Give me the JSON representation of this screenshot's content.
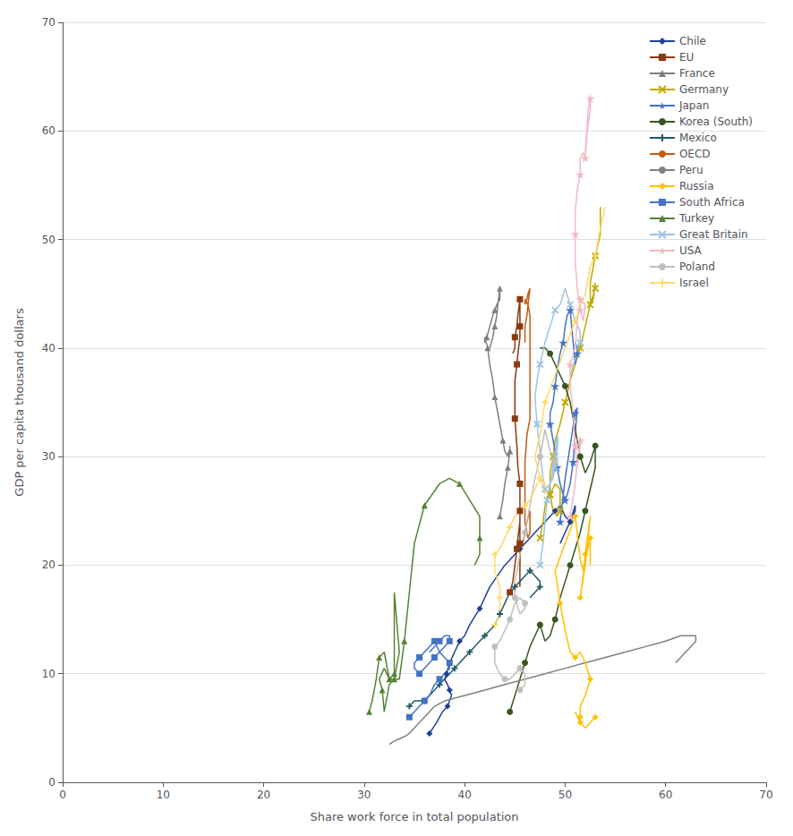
{
  "chart_data": {
    "type": "line",
    "xlabel": "Share work force in total population",
    "ylabel": "GDP per capita thousand dollars",
    "xlim": [
      0,
      70
    ],
    "ylim": [
      0,
      70
    ],
    "xticks": [
      0,
      10,
      20,
      30,
      40,
      50,
      60,
      70
    ],
    "yticks": [
      0,
      10,
      20,
      30,
      40,
      50,
      60,
      70
    ],
    "grid": "y",
    "legend": "upper right",
    "series": [
      {
        "name": "Chile",
        "color": "#1f3f99",
        "marker": "diamond",
        "x": [
          36.5,
          37.2,
          37.8,
          38.3,
          38.5,
          38.7,
          38.5,
          38.3,
          38.0,
          38.2,
          38.5,
          39.0,
          39.5,
          40.0,
          40.5,
          41.5,
          42.5,
          44.0,
          45.5,
          47.0,
          48.0,
          49.0,
          49.5,
          50.0,
          50.5,
          51.0,
          51.0,
          50.5,
          50.0,
          49.5
        ],
        "values": [
          4.5,
          5.5,
          6.5,
          7.0,
          7.5,
          8.0,
          8.5,
          9.0,
          9.5,
          10.0,
          11.0,
          12.0,
          13.0,
          13.5,
          14.5,
          16.0,
          18.0,
          20.0,
          21.5,
          23.0,
          24.0,
          25.0,
          25.5,
          24.5,
          24.0,
          25.0,
          25.5,
          24.0,
          23.0,
          22.0
        ]
      },
      {
        "name": "EU",
        "color": "#8b3a0f",
        "marker": "square",
        "x": [
          44.5,
          44.8,
          45.0,
          45.2,
          45.3,
          45.5,
          45.5,
          45.5,
          45.5,
          45.5,
          45.5,
          45.5,
          45.5,
          45.3,
          45.2,
          45.0,
          45.0,
          45.0,
          45.2,
          45.3,
          45.5,
          45.5,
          45.5,
          45.5,
          45.5,
          45.3,
          45.2,
          45.0,
          45.0,
          44.8
        ],
        "values": [
          17.5,
          18.5,
          20.0,
          21.5,
          22.5,
          24.0,
          25.0,
          18.0,
          19.0,
          22.0,
          23.5,
          26.0,
          27.5,
          29.0,
          31.0,
          33.5,
          35.0,
          37.0,
          38.5,
          39.5,
          41.0,
          42.0,
          43.0,
          44.0,
          44.5,
          43.0,
          42.0,
          41.0,
          40.0,
          39.5
        ]
      },
      {
        "name": "France",
        "color": "#7f7f7f",
        "marker": "triangle",
        "x": [
          43.5,
          43.8,
          44.0,
          44.3,
          44.5,
          44.5,
          44.5,
          44.3,
          44.0,
          43.8,
          43.5,
          43.2,
          43.0,
          42.8,
          42.5,
          42.3,
          42.0,
          42.0,
          42.2,
          42.5,
          42.8,
          43.0,
          43.2,
          43.5,
          43.5,
          43.3,
          43.2,
          43.0,
          42.8,
          42.5
        ],
        "values": [
          24.5,
          26.0,
          27.5,
          29.0,
          30.5,
          31.0,
          30.5,
          30.0,
          30.5,
          31.5,
          33.0,
          34.5,
          35.5,
          37.0,
          38.5,
          40.0,
          41.0,
          40.5,
          41.0,
          42.0,
          43.0,
          43.5,
          44.0,
          44.5,
          45.5,
          44.0,
          43.0,
          42.0,
          41.0,
          40.0
        ]
      },
      {
        "name": "Germany",
        "color": "#bfaa00",
        "marker": "x",
        "x": [
          47.5,
          47.8,
          48.0,
          48.5,
          49.0,
          49.5,
          49.5,
          49.2,
          48.8,
          48.5,
          48.5,
          48.5,
          48.8,
          49.0,
          49.5,
          50.0,
          50.5,
          51.0,
          51.5,
          52.0,
          52.5,
          53.0,
          53.0,
          52.8,
          52.5,
          52.5,
          52.8,
          53.0,
          53.5,
          53.5
        ],
        "values": [
          22.5,
          24.0,
          25.5,
          26.5,
          27.5,
          27.0,
          25.0,
          24.5,
          25.0,
          26.5,
          27.5,
          28.5,
          30.0,
          31.5,
          33.0,
          35.0,
          37.0,
          38.5,
          40.0,
          42.0,
          44.0,
          45.5,
          46.0,
          44.5,
          44.0,
          46.0,
          47.5,
          48.5,
          50.5,
          53.0
        ]
      },
      {
        "name": "Japan",
        "color": "#4472c4",
        "marker": "star",
        "x": [
          49.5,
          50.0,
          50.5,
          51.0,
          51.2,
          51.0,
          50.8,
          50.5,
          50.2,
          50.0,
          49.8,
          49.5,
          49.2,
          49.0,
          48.8,
          48.5,
          48.5,
          48.8,
          49.0,
          49.2,
          49.5,
          49.8,
          50.0,
          50.2,
          50.5,
          50.8,
          51.0,
          51.2,
          51.2,
          51.0
        ],
        "values": [
          24.0,
          28.0,
          31.0,
          34.0,
          34.5,
          32.0,
          29.5,
          27.5,
          26.5,
          26.0,
          26.5,
          27.5,
          29.0,
          30.5,
          31.5,
          33.0,
          34.0,
          35.0,
          36.5,
          38.0,
          39.5,
          40.5,
          42.0,
          43.0,
          43.5,
          40.5,
          38.5,
          39.5,
          40.0,
          40.5
        ]
      },
      {
        "name": "Korea (South)",
        "color": "#375623",
        "marker": "circle",
        "x": [
          44.5,
          45.0,
          45.5,
          46.0,
          46.5,
          47.0,
          47.5,
          48.0,
          48.5,
          49.0,
          49.5,
          50.0,
          50.5,
          51.0,
          51.5,
          52.0,
          52.5,
          53.0,
          53.0,
          52.5,
          52.0,
          51.5,
          51.0,
          50.5,
          50.0,
          49.5,
          49.0,
          48.5,
          48.0,
          47.5
        ],
        "values": [
          6.5,
          8.0,
          9.5,
          11.0,
          12.5,
          13.5,
          14.5,
          13.0,
          13.5,
          15.0,
          17.0,
          18.5,
          20.0,
          21.5,
          23.0,
          25.0,
          27.0,
          29.0,
          31.0,
          29.5,
          28.5,
          30.0,
          32.5,
          35.0,
          36.5,
          37.5,
          38.5,
          39.5,
          40.0,
          40.0
        ]
      },
      {
        "name": "Mexico",
        "color": "#215868",
        "marker": "plus",
        "x": [
          34.5,
          35.0,
          35.5,
          36.0,
          36.5,
          37.0,
          37.5,
          38.0,
          38.5,
          39.0,
          39.5,
          40.0,
          40.5,
          41.0,
          41.5,
          42.0,
          42.5,
          43.0,
          43.5,
          44.0,
          44.5,
          45.0,
          45.5,
          46.0,
          46.5,
          47.0,
          47.5,
          47.5,
          47.0,
          46.5
        ],
        "values": [
          7.0,
          7.5,
          7.5,
          7.5,
          8.0,
          8.5,
          9.0,
          9.5,
          10.0,
          10.5,
          11.0,
          11.5,
          12.0,
          12.5,
          13.0,
          13.5,
          14.0,
          14.5,
          15.5,
          16.5,
          17.5,
          18.0,
          18.5,
          19.0,
          19.5,
          19.0,
          18.5,
          18.0,
          17.5,
          17.0
        ]
      },
      {
        "name": "OECD",
        "color": "#c55a11",
        "marker": "none",
        "x": [
          45.5,
          45.5,
          45.8,
          46.0,
          46.2,
          46.5,
          46.5,
          46.3,
          46.0,
          46.0,
          46.0,
          46.2,
          46.5,
          46.5,
          46.5,
          46.5,
          46.5,
          46.5,
          46.5,
          46.3,
          46.0,
          46.0,
          46.2,
          46.3,
          46.5,
          46.3,
          46.2,
          46.0,
          46.0,
          46.0
        ],
        "values": [
          20.0,
          21.0,
          22.0,
          23.0,
          24.0,
          25.0,
          23.0,
          22.5,
          24.0,
          27.0,
          29.5,
          32.0,
          33.5,
          35.0,
          37.0,
          38.5,
          40.0,
          41.5,
          43.0,
          44.0,
          44.5,
          44.0,
          44.5,
          45.0,
          45.5,
          44.0,
          43.0,
          42.0,
          41.0,
          40.5
        ]
      },
      {
        "name": "Peru",
        "color": "#808080",
        "marker": "none",
        "x": [
          32.5,
          33.0,
          33.5,
          34.0,
          34.5,
          35.0,
          35.5,
          36.0,
          36.5,
          37.0,
          38.0,
          40.0,
          42.0,
          44.0,
          46.0,
          48.0,
          50.0,
          52.0,
          54.0,
          56.0,
          58.0,
          60.0,
          61.5,
          62.5,
          63.0,
          63.0,
          62.5,
          62.0,
          61.5,
          61.0
        ],
        "values": [
          3.5,
          3.8,
          4.0,
          4.2,
          4.5,
          5.0,
          5.5,
          6.0,
          6.5,
          7.0,
          7.5,
          8.0,
          8.5,
          9.0,
          9.5,
          10.0,
          10.5,
          11.0,
          11.5,
          12.0,
          12.5,
          13.0,
          13.5,
          13.5,
          13.5,
          13.0,
          12.5,
          12.0,
          11.5,
          11.0
        ]
      },
      {
        "name": "Russia",
        "color": "#ffc000",
        "marker": "diamond",
        "x": [
          53.0,
          52.5,
          52.0,
          51.5,
          51.0,
          51.5,
          51.5,
          51.5,
          52.0,
          52.5,
          52.0,
          51.5,
          51.0,
          50.5,
          50.0,
          49.5,
          49.0,
          50.0,
          51.0,
          51.5,
          51.8,
          52.0,
          52.5,
          52.0,
          51.5,
          52.0,
          52.5,
          52.5,
          52.5,
          52.5
        ],
        "values": [
          6.0,
          5.5,
          5.0,
          5.5,
          6.5,
          5.5,
          6.0,
          7.0,
          8.0,
          9.5,
          11.0,
          12.0,
          11.5,
          12.0,
          14.0,
          16.5,
          19.5,
          22.0,
          24.5,
          20.5,
          19.5,
          21.0,
          24.5,
          20.0,
          17.0,
          20.5,
          22.5,
          22.5,
          21.5,
          20.0
        ]
      },
      {
        "name": "South Africa",
        "color": "#4472c4",
        "marker": "square",
        "x": [
          34.5,
          35.0,
          35.5,
          36.0,
          36.5,
          37.0,
          37.5,
          38.0,
          38.5,
          38.5,
          38.0,
          37.5,
          37.0,
          36.5,
          36.0,
          35.5,
          35.0,
          35.0,
          35.5,
          36.0,
          36.5,
          37.0,
          37.5,
          38.0,
          38.5,
          38.5,
          38.0,
          37.5,
          37.0,
          36.5
        ],
        "values": [
          6.0,
          6.5,
          7.0,
          7.5,
          8.0,
          9.0,
          9.5,
          10.0,
          10.5,
          11.0,
          11.5,
          12.0,
          13.0,
          12.5,
          12.0,
          11.5,
          11.0,
          10.5,
          10.0,
          10.5,
          11.0,
          11.5,
          12.0,
          12.5,
          13.0,
          13.5,
          13.5,
          13.0,
          12.5,
          12.0
        ]
      },
      {
        "name": "Turkey",
        "color": "#548235",
        "marker": "triangle",
        "x": [
          30.5,
          30.8,
          31.2,
          31.5,
          32.0,
          32.5,
          33.0,
          33.0,
          33.5,
          33.0,
          32.5,
          32.0,
          31.8,
          31.5,
          32.0,
          32.5,
          33.0,
          33.5,
          34.0,
          34.5,
          35.0,
          36.0,
          37.5,
          38.5,
          39.5,
          40.5,
          41.5,
          41.5,
          41.5,
          41.0
        ],
        "values": [
          6.5,
          7.5,
          9.5,
          11.5,
          12.0,
          9.5,
          10.0,
          17.5,
          12.0,
          9.5,
          9.0,
          6.5,
          8.5,
          9.5,
          10.5,
          9.5,
          9.5,
          9.5,
          13.0,
          17.5,
          22.0,
          25.5,
          27.5,
          28.0,
          27.5,
          26.0,
          24.5,
          22.5,
          21.0,
          20.0
        ]
      },
      {
        "name": "Great Britain",
        "color": "#9dc3e6",
        "marker": "x",
        "x": [
          47.5,
          47.8,
          48.0,
          48.2,
          48.5,
          48.8,
          49.0,
          49.2,
          49.3,
          49.0,
          48.8,
          48.5,
          48.0,
          47.8,
          47.5,
          47.2,
          47.0,
          47.2,
          47.5,
          48.0,
          48.5,
          49.0,
          49.5,
          50.0,
          50.5,
          51.0,
          51.5,
          51.5,
          51.0,
          50.5
        ],
        "values": [
          20.0,
          22.0,
          24.0,
          26.0,
          27.5,
          29.0,
          30.0,
          32.0,
          31.5,
          29.0,
          28.0,
          27.5,
          27.0,
          28.0,
          30.5,
          33.0,
          35.5,
          37.0,
          38.5,
          40.5,
          42.0,
          43.5,
          44.0,
          45.5,
          44.0,
          42.5,
          41.5,
          40.5,
          39.0,
          37.5
        ]
      },
      {
        "name": "USA",
        "color": "#f4b8c1",
        "marker": "star",
        "x": [
          50.5,
          51.0,
          51.2,
          51.5,
          51.5,
          51.2,
          51.0,
          50.8,
          50.5,
          50.5,
          51.0,
          51.2,
          51.5,
          52.0,
          51.8,
          51.5,
          51.2,
          51.0,
          51.0,
          51.0,
          51.2,
          51.5,
          51.5,
          51.8,
          52.0,
          52.2,
          52.5,
          52.5,
          52.3,
          52.0
        ],
        "values": [
          24.5,
          27.5,
          29.5,
          31.5,
          31.0,
          29.0,
          31.0,
          34.0,
          36.5,
          38.5,
          40.0,
          42.5,
          44.5,
          44.0,
          42.5,
          43.5,
          45.5,
          48.0,
          50.5,
          52.5,
          54.5,
          56.0,
          57.5,
          58.0,
          57.5,
          60.0,
          62.0,
          63.0,
          62.0,
          58.0
        ]
      },
      {
        "name": "Poland",
        "color": "#bfbfbf",
        "marker": "circle",
        "x": [
          45.5,
          46.0,
          46.0,
          45.5,
          45.0,
          44.5,
          44.0,
          43.5,
          43.0,
          43.0,
          43.5,
          44.0,
          44.5,
          45.0,
          45.5,
          46.0,
          46.0,
          45.5,
          45.0,
          45.0,
          45.5,
          46.0,
          46.5,
          47.0,
          47.5,
          48.0,
          48.5,
          49.0,
          48.8,
          48.5
        ],
        "values": [
          8.5,
          9.0,
          10.0,
          10.5,
          10.0,
          9.5,
          9.5,
          10.0,
          11.0,
          12.5,
          13.0,
          14.0,
          15.0,
          16.5,
          17.0,
          16.5,
          16.0,
          15.5,
          17.0,
          18.5,
          21.0,
          23.0,
          25.5,
          28.0,
          30.0,
          32.5,
          30.5,
          29.5,
          28.5,
          27.5
        ]
      },
      {
        "name": "Israel",
        "color": "#ffd966",
        "marker": "plus",
        "x": [
          43.0,
          43.5,
          43.5,
          43.5,
          43.5,
          43.0,
          43.0,
          43.5,
          44.0,
          44.5,
          45.0,
          45.5,
          46.0,
          46.5,
          47.0,
          47.5,
          48.0,
          48.0,
          47.5,
          47.0,
          47.5,
          48.0,
          49.0,
          50.0,
          51.0,
          52.0,
          52.5,
          53.0,
          53.5,
          54.0
        ],
        "values": [
          14.5,
          15.5,
          16.5,
          17.0,
          18.0,
          19.5,
          21.0,
          21.5,
          22.5,
          23.5,
          24.5,
          25.0,
          25.5,
          26.0,
          27.0,
          28.0,
          27.5,
          26.5,
          28.0,
          30.0,
          32.0,
          35.0,
          37.5,
          40.0,
          42.5,
          45.0,
          47.5,
          48.5,
          51.0,
          53.0
        ]
      }
    ]
  }
}
